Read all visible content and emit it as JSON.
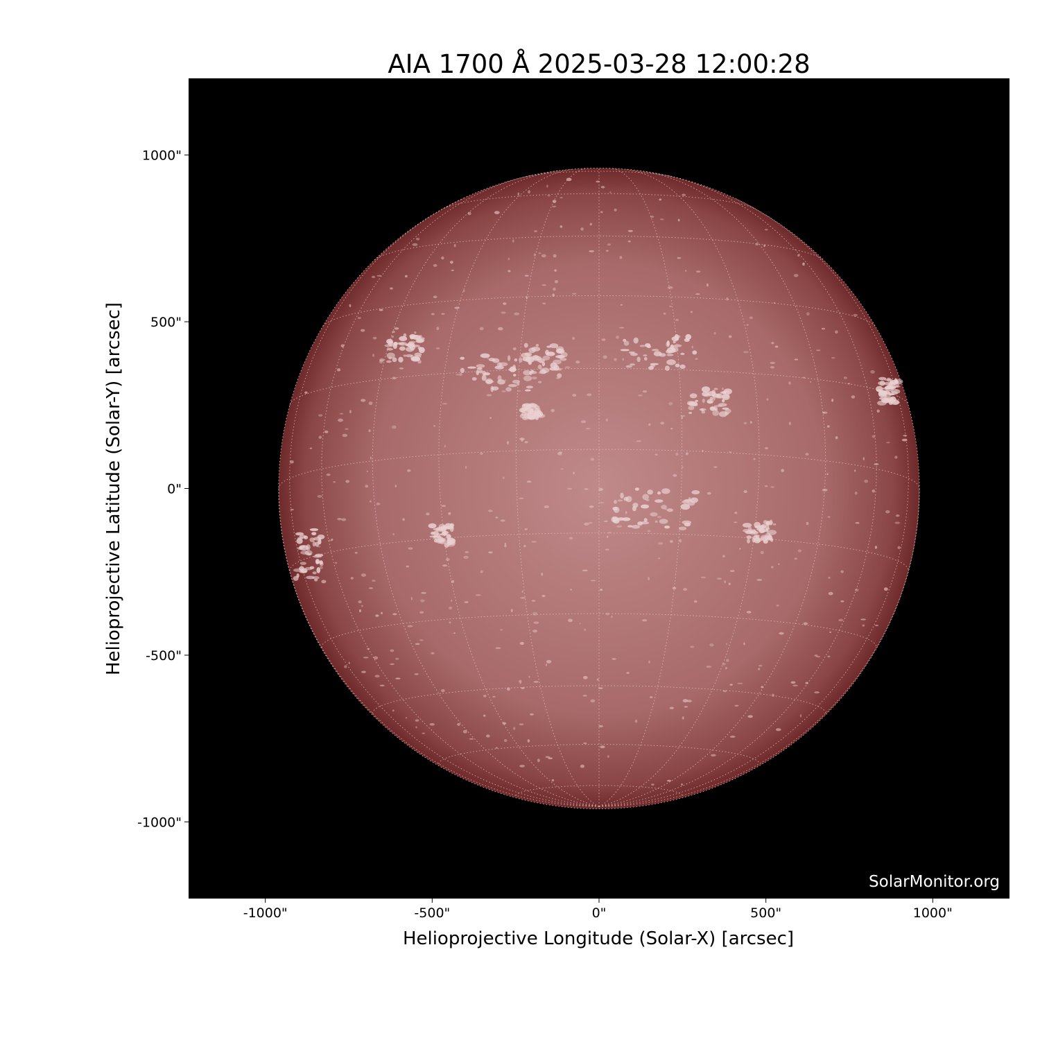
{
  "chart_data": {
    "type": "heatmap",
    "title": "AIA 1700 Å 2025-03-28 12:00:28",
    "xlabel": "Helioprojective Longitude (Solar-X) [arcsec]",
    "ylabel": "Helioprojective Latitude (Solar-Y) [arcsec]",
    "xlim": [
      -1230,
      1230
    ],
    "ylim": [
      -1230,
      1230
    ],
    "xticks": [
      -1000,
      -500,
      0,
      500,
      1000
    ],
    "xtick_labels": [
      "-1000\"",
      "-500\"",
      "0\"",
      "500\"",
      "1000\""
    ],
    "yticks": [
      1000,
      500,
      0,
      -500,
      -1000
    ],
    "ytick_labels": [
      "1000\"",
      "500\"",
      "0\"",
      "-500\"",
      "-1000\""
    ],
    "solar_radius_arcsec": 960,
    "grid_spacing_deg": 15,
    "colormap": "sdoaia1700",
    "colors": {
      "background": "#000000",
      "disk_center": "#c08a8a",
      "disk_limb": "#6e2a2a",
      "grid": "#e8c8c8"
    },
    "watermark": "SolarMonitor.org"
  }
}
